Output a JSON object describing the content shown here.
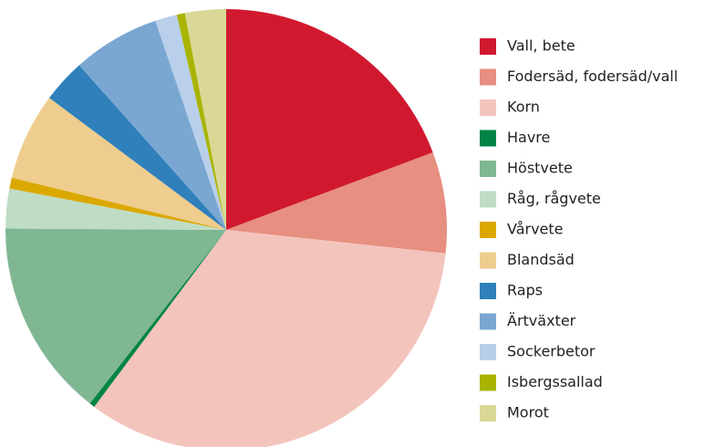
{
  "chart_data": {
    "type": "pie",
    "categories": [
      "Vall, bete",
      "Fodersäd, fodersäd/vall",
      "Korn",
      "Havre",
      "Höstvete",
      "Råg, rågvete",
      "Vårvete",
      "Blandsäd",
      "Raps",
      "Ärtväxter",
      "Sockerbetor",
      "Isbergssallad",
      "Morot"
    ],
    "values": [
      19.3,
      7.4,
      33.5,
      0.4,
      14.5,
      2.9,
      0.8,
      6.4,
      3.2,
      6.4,
      1.6,
      0.6,
      3.0
    ],
    "colors": [
      "#d0192e",
      "#e78f80",
      "#f3c4bc",
      "#008444",
      "#80b793",
      "#bfdcc5",
      "#dba800",
      "#efcd8e",
      "#2f80bb",
      "#7aa7d2",
      "#b9cfea",
      "#a9b400",
      "#d9d896"
    ],
    "legend": "right"
  }
}
